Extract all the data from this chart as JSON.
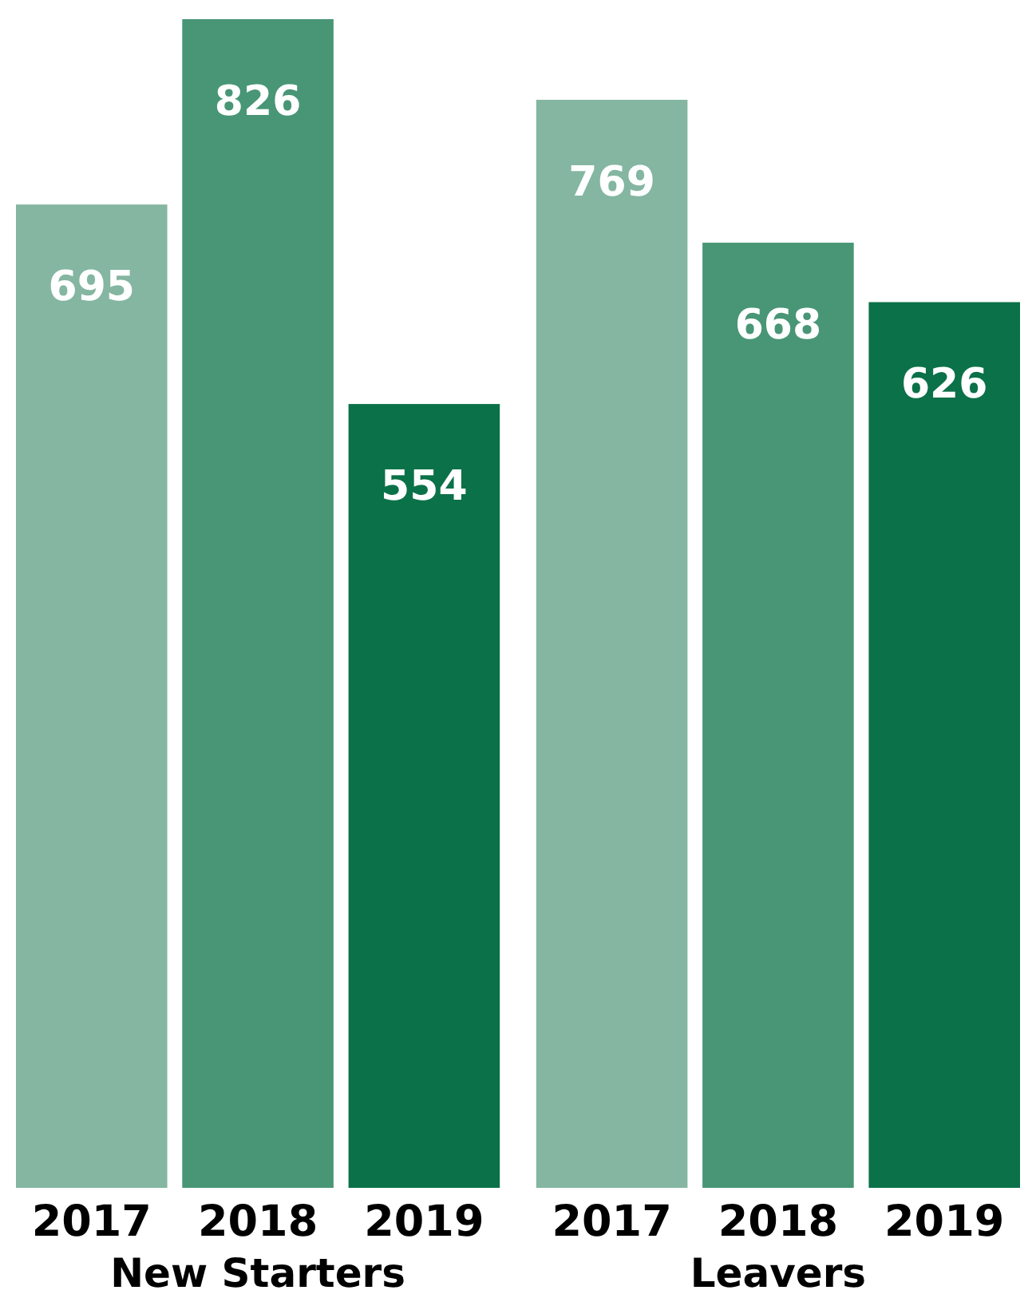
{
  "chart_data": {
    "type": "bar",
    "categories": [
      "New Starters",
      "Leavers"
    ],
    "series": [
      {
        "name": "2017",
        "color": "#84b6a2",
        "values": [
          695,
          769
        ]
      },
      {
        "name": "2018",
        "color": "#489676",
        "values": [
          826,
          668
        ]
      },
      {
        "name": "2019",
        "color": "#0b7148",
        "values": [
          554,
          626
        ]
      }
    ],
    "data_labels": true
  }
}
